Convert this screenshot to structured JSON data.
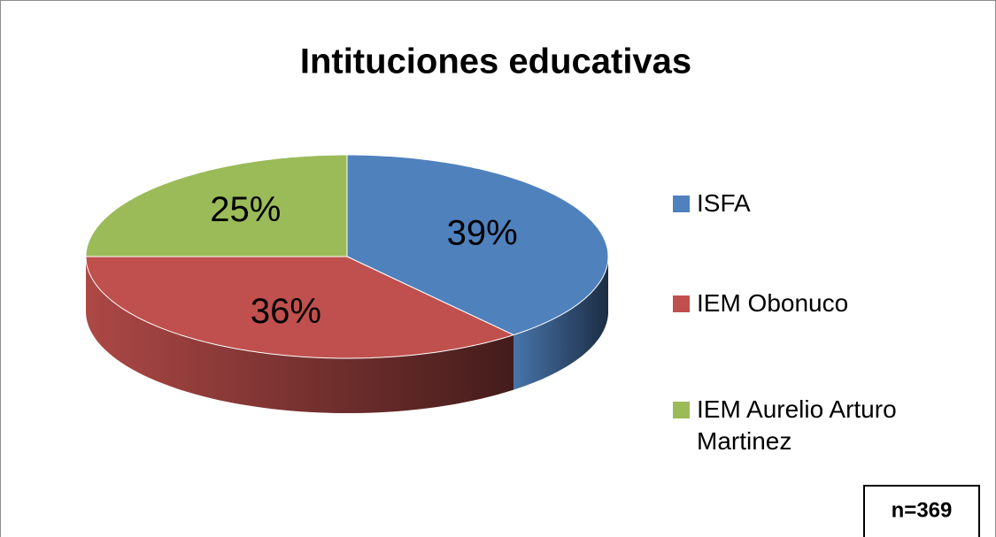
{
  "chart_data": {
    "type": "pie",
    "title": "Intituciones educativas",
    "categories": [
      "ISFA",
      "IEM Obonuco",
      "IEM Aurelio Arturo Martinez"
    ],
    "values": [
      39,
      36,
      25
    ],
    "value_labels": [
      "39%",
      "36%",
      "25%"
    ],
    "colors": [
      "#4f81bd",
      "#c0504d",
      "#9bbb59"
    ],
    "legend": "right",
    "annotation": "n=369"
  }
}
